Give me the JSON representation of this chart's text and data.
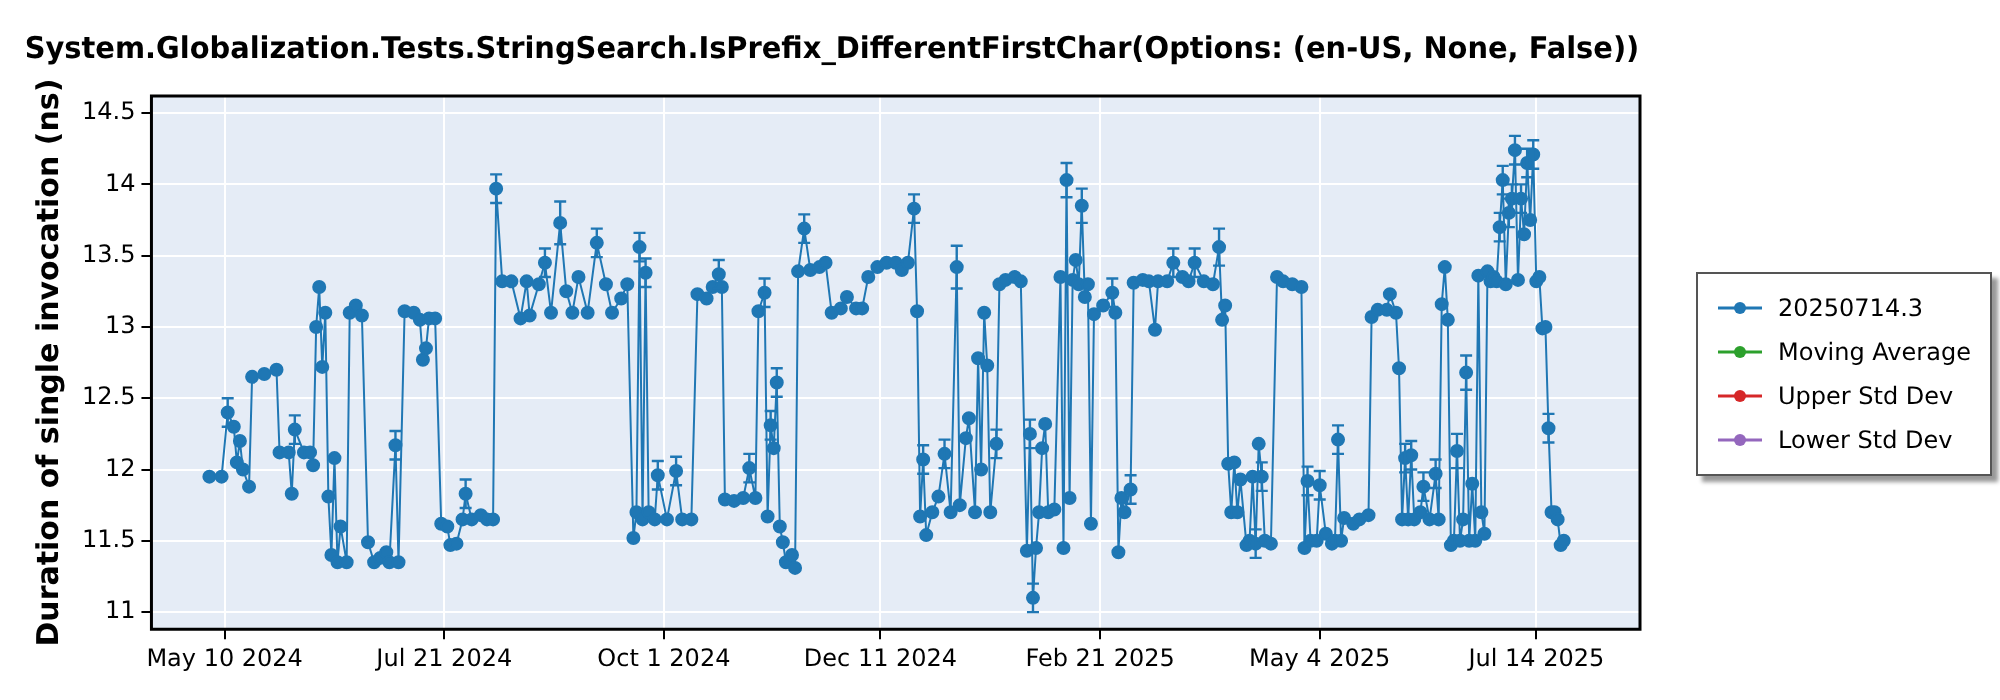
{
  "chart_data": {
    "type": "line",
    "title": "System.Globalization.Tests.StringSearch.IsPrefix_DifferentFirstChar(Options: (en-US, None, False))",
    "ylabel": "Duration of single invocation (ns)",
    "xlim": [
      "2024-04-16",
      "2025-08-17"
    ],
    "xticks": [
      {
        "value": "2024-05-10",
        "label": "May 10 2024"
      },
      {
        "value": "2024-07-21",
        "label": "Jul 21 2024"
      },
      {
        "value": "2024-10-01",
        "label": "Oct 1 2024"
      },
      {
        "value": "2024-12-11",
        "label": "Dec 11 2024"
      },
      {
        "value": "2025-02-21",
        "label": "Feb 21 2025"
      },
      {
        "value": "2025-05-04",
        "label": "May 4 2025"
      },
      {
        "value": "2025-07-14",
        "label": "Jul 14 2025"
      }
    ],
    "ylim": [
      10.88,
      14.62
    ],
    "yticks": [
      11,
      11.5,
      12,
      12.5,
      13,
      13.5,
      14,
      14.5
    ],
    "grid": true,
    "legend": "right",
    "marker": "circle",
    "line_style": "solid",
    "series": [
      {
        "name": "20250714.3",
        "color": "#1f77b4",
        "x": [
          "2024-05-05",
          "2024-05-09",
          "2024-05-11",
          "2024-05-13",
          "2024-05-14",
          "2024-05-15",
          "2024-05-16",
          "2024-05-18",
          "2024-05-19",
          "2024-05-23",
          "2024-05-27",
          "2024-05-28",
          "2024-05-31",
          "2024-06-01",
          "2024-06-02",
          "2024-06-05",
          "2024-06-07",
          "2024-06-08",
          "2024-06-09",
          "2024-06-10",
          "2024-06-11",
          "2024-06-12",
          "2024-06-13",
          "2024-06-14",
          "2024-06-15",
          "2024-06-16",
          "2024-06-17",
          "2024-06-19",
          "2024-06-20",
          "2024-06-22",
          "2024-06-24",
          "2024-06-26",
          "2024-06-28",
          "2024-06-30",
          "2024-07-02",
          "2024-07-03",
          "2024-07-05",
          "2024-07-06",
          "2024-07-08",
          "2024-07-11",
          "2024-07-13",
          "2024-07-14",
          "2024-07-15",
          "2024-07-16",
          "2024-07-18",
          "2024-07-20",
          "2024-07-22",
          "2024-07-23",
          "2024-07-25",
          "2024-07-27",
          "2024-07-28",
          "2024-07-30",
          "2024-08-02",
          "2024-08-04",
          "2024-08-06",
          "2024-08-07",
          "2024-08-09",
          "2024-08-12",
          "2024-08-15",
          "2024-08-17",
          "2024-08-18",
          "2024-08-21",
          "2024-08-23",
          "2024-08-25",
          "2024-08-28",
          "2024-08-30",
          "2024-09-01",
          "2024-09-03",
          "2024-09-06",
          "2024-09-09",
          "2024-09-12",
          "2024-09-14",
          "2024-09-17",
          "2024-09-19",
          "2024-09-21",
          "2024-09-22",
          "2024-09-23",
          "2024-09-24",
          "2024-09-25",
          "2024-09-26",
          "2024-09-28",
          "2024-09-29",
          "2024-10-02",
          "2024-10-05",
          "2024-10-07",
          "2024-10-10",
          "2024-10-12",
          "2024-10-15",
          "2024-10-17",
          "2024-10-19",
          "2024-10-20",
          "2024-10-21",
          "2024-10-24",
          "2024-10-27",
          "2024-10-29",
          "2024-10-31",
          "2024-11-01",
          "2024-11-03",
          "2024-11-04",
          "2024-11-05",
          "2024-11-06",
          "2024-11-07",
          "2024-11-08",
          "2024-11-09",
          "2024-11-10",
          "2024-11-12",
          "2024-11-13",
          "2024-11-14",
          "2024-11-16",
          "2024-11-18",
          "2024-11-21",
          "2024-11-23",
          "2024-11-25",
          "2024-11-28",
          "2024-11-30",
          "2024-12-03",
          "2024-12-05",
          "2024-12-07",
          "2024-12-10",
          "2024-12-13",
          "2024-12-16",
          "2024-12-18",
          "2024-12-20",
          "2024-12-22",
          "2024-12-23",
          "2024-12-24",
          "2024-12-25",
          "2024-12-26",
          "2024-12-28",
          "2024-12-30",
          "2025-01-01",
          "2025-01-03",
          "2025-01-05",
          "2025-01-06",
          "2025-01-08",
          "2025-01-09",
          "2025-01-11",
          "2025-01-12",
          "2025-01-13",
          "2025-01-14",
          "2025-01-15",
          "2025-01-16",
          "2025-01-18",
          "2025-01-19",
          "2025-01-21",
          "2025-01-24",
          "2025-01-26",
          "2025-01-28",
          "2025-01-29",
          "2025-01-30",
          "2025-01-31",
          "2025-02-01",
          "2025-02-02",
          "2025-02-03",
          "2025-02-04",
          "2025-02-06",
          "2025-02-08",
          "2025-02-09",
          "2025-02-10",
          "2025-02-11",
          "2025-02-12",
          "2025-02-13",
          "2025-02-14",
          "2025-02-15",
          "2025-02-16",
          "2025-02-17",
          "2025-02-18",
          "2025-02-19",
          "2025-02-22",
          "2025-02-25",
          "2025-02-26",
          "2025-02-27",
          "2025-02-28",
          "2025-03-01",
          "2025-03-03",
          "2025-03-04",
          "2025-03-07",
          "2025-03-09",
          "2025-03-11",
          "2025-03-12",
          "2025-03-15",
          "2025-03-17",
          "2025-03-20",
          "2025-03-22",
          "2025-03-24",
          "2025-03-27",
          "2025-03-30",
          "2025-04-01",
          "2025-04-02",
          "2025-04-03",
          "2025-04-04",
          "2025-04-05",
          "2025-04-06",
          "2025-04-07",
          "2025-04-08",
          "2025-04-10",
          "2025-04-11",
          "2025-04-12",
          "2025-04-13",
          "2025-04-14",
          "2025-04-15",
          "2025-04-16",
          "2025-04-18",
          "2025-04-20",
          "2025-04-22",
          "2025-04-25",
          "2025-04-28",
          "2025-04-29",
          "2025-04-30",
          "2025-05-01",
          "2025-05-03",
          "2025-05-04",
          "2025-05-06",
          "2025-05-08",
          "2025-05-09",
          "2025-05-10",
          "2025-05-11",
          "2025-05-12",
          "2025-05-15",
          "2025-05-17",
          "2025-05-20",
          "2025-05-21",
          "2025-05-23",
          "2025-05-26",
          "2025-05-27",
          "2025-05-29",
          "2025-05-30",
          "2025-05-31",
          "2025-06-01",
          "2025-06-02",
          "2025-06-03",
          "2025-06-04",
          "2025-06-06",
          "2025-06-07",
          "2025-06-09",
          "2025-06-11",
          "2025-06-12",
          "2025-06-13",
          "2025-06-14",
          "2025-06-15",
          "2025-06-16",
          "2025-06-17",
          "2025-06-18",
          "2025-06-19",
          "2025-06-20",
          "2025-06-21",
          "2025-06-22",
          "2025-06-23",
          "2025-06-24",
          "2025-06-25",
          "2025-06-26",
          "2025-06-27",
          "2025-06-28",
          "2025-06-29",
          "2025-06-30",
          "2025-07-01",
          "2025-07-02",
          "2025-07-03",
          "2025-07-04",
          "2025-07-05",
          "2025-07-06",
          "2025-07-07",
          "2025-07-08",
          "2025-07-09",
          "2025-07-10",
          "2025-07-11",
          "2025-07-12",
          "2025-07-13",
          "2025-07-14",
          "2025-07-15",
          "2025-07-16",
          "2025-07-17",
          "2025-07-18",
          "2025-07-19",
          "2025-07-20",
          "2025-07-21",
          "2025-07-22",
          "2025-07-23"
        ],
        "values": [
          11.95,
          11.95,
          12.4,
          12.3,
          12.05,
          12.2,
          12.0,
          11.88,
          12.65,
          12.67,
          12.7,
          12.12,
          12.12,
          11.83,
          12.28,
          12.12,
          12.12,
          12.03,
          13.0,
          13.28,
          12.72,
          13.1,
          11.81,
          11.4,
          12.08,
          11.35,
          11.6,
          11.35,
          13.1,
          13.15,
          13.08,
          11.49,
          11.35,
          11.38,
          11.42,
          11.35,
          12.17,
          11.35,
          13.11,
          13.1,
          13.05,
          12.77,
          12.85,
          13.06,
          13.06,
          11.62,
          11.6,
          11.47,
          11.48,
          11.65,
          11.83,
          11.65,
          11.68,
          11.65,
          11.65,
          13.97,
          13.32,
          13.32,
          13.06,
          13.32,
          13.08,
          13.3,
          13.45,
          13.1,
          13.73,
          13.25,
          13.1,
          13.35,
          13.1,
          13.59,
          13.3,
          13.1,
          13.2,
          13.3,
          11.52,
          11.7,
          13.56,
          11.65,
          13.38,
          11.7,
          11.65,
          11.96,
          11.65,
          11.99,
          11.65,
          11.65,
          13.23,
          13.2,
          13.28,
          13.37,
          13.28,
          11.79,
          11.78,
          11.8,
          12.01,
          11.8,
          13.11,
          13.24,
          11.67,
          12.31,
          12.15,
          12.61,
          11.6,
          11.49,
          11.35,
          11.4,
          11.31,
          13.39,
          13.69,
          13.4,
          13.42,
          13.45,
          13.1,
          13.13,
          13.21,
          13.13,
          13.13,
          13.35,
          13.42,
          13.45,
          13.45,
          13.4,
          13.45,
          13.83,
          13.11,
          11.67,
          12.07,
          11.54,
          11.7,
          11.81,
          12.11,
          11.7,
          13.42,
          11.75,
          12.22,
          12.36,
          11.7,
          12.78,
          12.0,
          13.1,
          12.73,
          11.7,
          12.18,
          13.3,
          13.33,
          13.35,
          13.32,
          11.43,
          12.25,
          11.1,
          11.45,
          11.7,
          12.15,
          12.32,
          11.7,
          11.72,
          13.35,
          11.45,
          14.03,
          11.8,
          13.33,
          13.47,
          13.3,
          13.85,
          13.21,
          13.3,
          11.62,
          13.09,
          13.15,
          13.24,
          13.1,
          11.42,
          11.8,
          11.7,
          11.86,
          13.31,
          13.33,
          13.32,
          12.98,
          13.32,
          13.32,
          13.45,
          13.35,
          13.32,
          13.45,
          13.32,
          13.3,
          13.56,
          13.05,
          13.15,
          12.04,
          11.7,
          12.05,
          11.7,
          11.93,
          11.47,
          11.5,
          11.95,
          11.48,
          12.18,
          11.95,
          11.5,
          11.48,
          13.35,
          13.32,
          13.3,
          13.28,
          11.45,
          11.92,
          11.5,
          11.5,
          11.89,
          11.55,
          11.48,
          11.5,
          12.21,
          11.5,
          11.66,
          11.62,
          11.65,
          11.68,
          13.07,
          13.12,
          13.12,
          13.23,
          13.1,
          12.71,
          11.65,
          12.08,
          11.65,
          12.1,
          11.65,
          11.7,
          11.88,
          11.65,
          11.97,
          11.65,
          13.16,
          13.42,
          13.05,
          11.47,
          11.5,
          12.13,
          11.5,
          11.65,
          12.68,
          11.5,
          11.9,
          11.5,
          13.36,
          11.7,
          11.55,
          13.39,
          13.32,
          13.35,
          13.32,
          13.7,
          14.03,
          13.3,
          13.8,
          13.9,
          14.24,
          13.33,
          13.9,
          13.65,
          14.15,
          13.75,
          14.21,
          13.32,
          13.35,
          12.99,
          13.0,
          12.29,
          11.7,
          11.7,
          11.65,
          11.47,
          11.5
        ],
        "errors": [
          null,
          null,
          0.1,
          null,
          null,
          null,
          null,
          null,
          null,
          null,
          null,
          null,
          null,
          null,
          0.1,
          null,
          null,
          null,
          null,
          null,
          null,
          null,
          null,
          null,
          null,
          null,
          null,
          null,
          null,
          null,
          null,
          null,
          null,
          null,
          null,
          null,
          0.1,
          null,
          null,
          null,
          null,
          null,
          null,
          null,
          null,
          null,
          null,
          null,
          null,
          null,
          0.1,
          null,
          null,
          null,
          null,
          0.1,
          null,
          null,
          null,
          null,
          null,
          null,
          0.1,
          null,
          0.15,
          null,
          null,
          null,
          null,
          0.1,
          null,
          null,
          null,
          null,
          null,
          null,
          0.1,
          null,
          0.1,
          null,
          null,
          0.1,
          null,
          0.1,
          null,
          null,
          null,
          null,
          null,
          0.1,
          null,
          null,
          null,
          null,
          0.1,
          null,
          null,
          0.1,
          null,
          0.1,
          null,
          0.1,
          null,
          null,
          null,
          null,
          null,
          null,
          0.1,
          null,
          null,
          null,
          null,
          null,
          null,
          null,
          null,
          null,
          null,
          null,
          null,
          null,
          null,
          0.1,
          null,
          null,
          0.1,
          null,
          null,
          null,
          0.1,
          null,
          0.15,
          null,
          null,
          null,
          null,
          null,
          null,
          null,
          null,
          null,
          0.1,
          null,
          null,
          null,
          null,
          null,
          0.1,
          0.1,
          null,
          null,
          null,
          null,
          null,
          null,
          null,
          null,
          0.12,
          null,
          null,
          null,
          null,
          0.12,
          null,
          null,
          null,
          null,
          null,
          0.1,
          null,
          null,
          null,
          null,
          0.1,
          null,
          null,
          null,
          null,
          null,
          null,
          0.1,
          null,
          null,
          0.1,
          null,
          null,
          0.13,
          null,
          null,
          null,
          null,
          null,
          null,
          null,
          null,
          null,
          null,
          0.1,
          null,
          0.1,
          null,
          null,
          null,
          null,
          null,
          null,
          null,
          0.1,
          null,
          null,
          0.1,
          null,
          null,
          null,
          0.1,
          null,
          null,
          null,
          null,
          null,
          null,
          null,
          null,
          null,
          null,
          null,
          null,
          0.1,
          null,
          0.1,
          null,
          null,
          0.1,
          null,
          0.1,
          null,
          null,
          null,
          null,
          null,
          null,
          0.12,
          null,
          null,
          0.12,
          null,
          null,
          null,
          null,
          null,
          null,
          null,
          null,
          null,
          null,
          0.1,
          0.1,
          null,
          0.1,
          0.1,
          0.1,
          null,
          0.1,
          null,
          0.1,
          null,
          0.1,
          null,
          null,
          null,
          null,
          0.1,
          null,
          null,
          null,
          null,
          null
        ]
      },
      {
        "name": "Moving Average",
        "color": "#2ca02c"
      },
      {
        "name": "Upper Std Dev",
        "color": "#d62728"
      },
      {
        "name": "Lower Std Dev",
        "color": "#9467bd"
      }
    ]
  }
}
